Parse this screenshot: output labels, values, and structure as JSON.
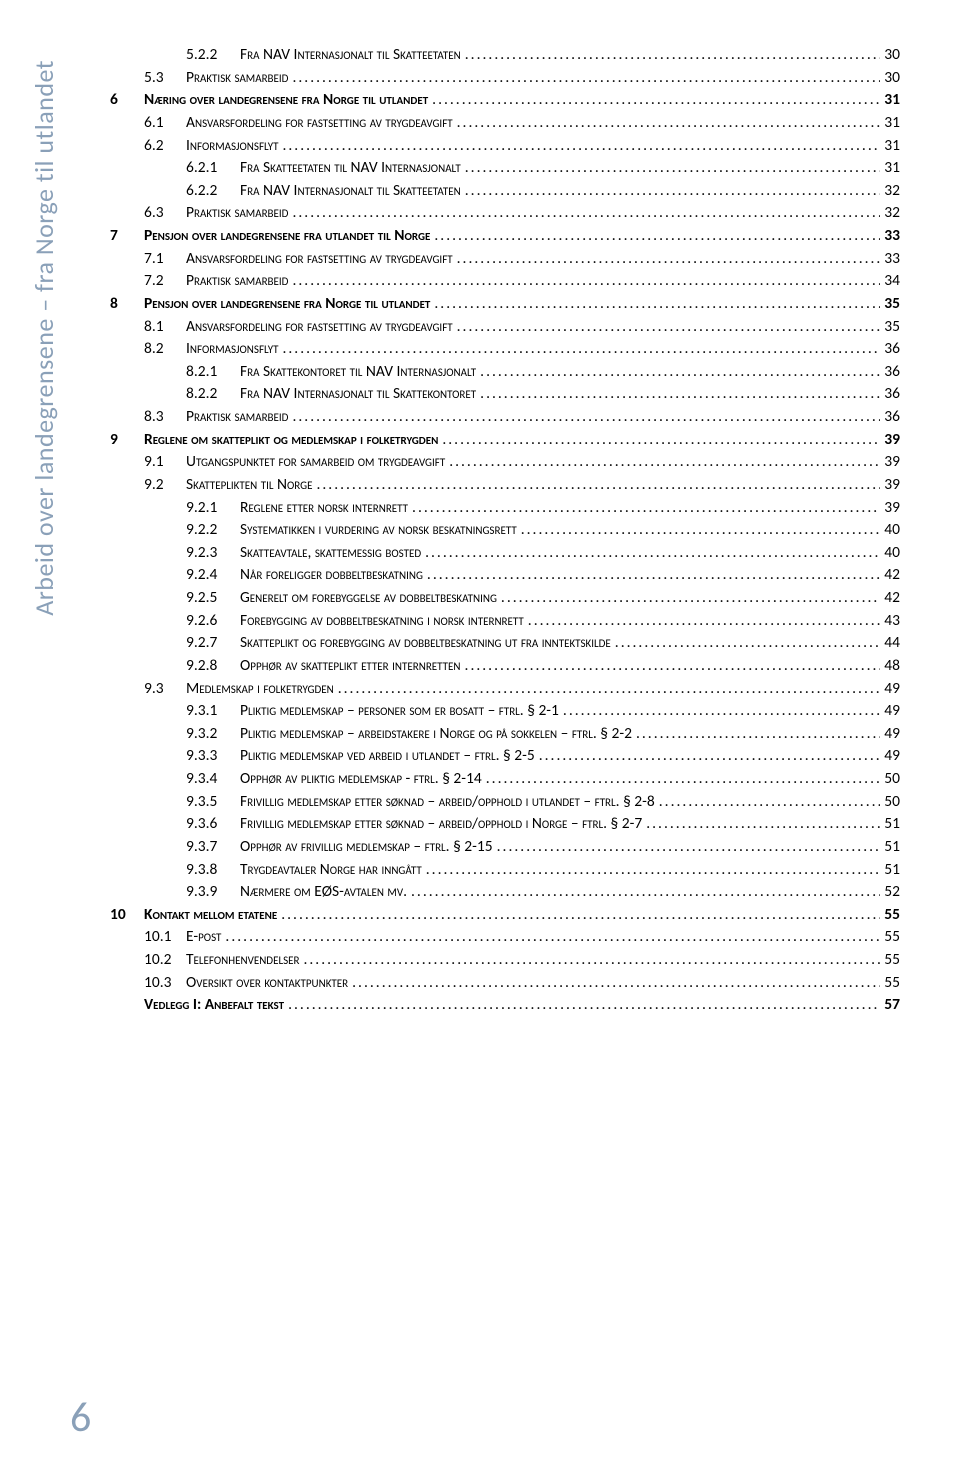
{
  "sidetext": "Arbeid over landegrensene – fra Norge til utlandet",
  "pagenum": "6",
  "leader": ".........................................................................................................................................................................................................................",
  "rows": [
    {
      "lvl": 3,
      "num": "5.2.2",
      "title": "Fra NAV Internasjonalt til Skatteetaten",
      "pg": "30"
    },
    {
      "lvl": 2,
      "num": "5.3",
      "title": "Praktisk samarbeid",
      "pg": "30"
    },
    {
      "lvl": 1,
      "num": "6",
      "title": "Næring over landegrensene fra Norge til utlandet",
      "pg": "31"
    },
    {
      "lvl": 2,
      "num": "6.1",
      "title": "Ansvarsfordeling for fastsetting av trygdeavgift",
      "pg": "31"
    },
    {
      "lvl": 2,
      "num": "6.2",
      "title": "Informasjonsflyt",
      "pg": "31"
    },
    {
      "lvl": 3,
      "num": "6.2.1",
      "title": "Fra Skatteetaten til NAV Internasjonalt",
      "pg": "31"
    },
    {
      "lvl": 3,
      "num": "6.2.2",
      "title": "Fra NAV Internasjonalt til Skatteetaten",
      "pg": "32"
    },
    {
      "lvl": 2,
      "num": "6.3",
      "title": "Praktisk samarbeid",
      "pg": "32"
    },
    {
      "lvl": 1,
      "num": "7",
      "title": "Pensjon over landegrensene fra utlandet til Norge",
      "pg": "33"
    },
    {
      "lvl": 2,
      "num": "7.1",
      "title": "Ansvarsfordeling for fastsetting av trygdeavgift",
      "pg": "33"
    },
    {
      "lvl": 2,
      "num": "7.2",
      "title": "Praktisk samarbeid",
      "pg": "34"
    },
    {
      "lvl": 1,
      "num": "8",
      "title": "Pensjon over landegrensene fra Norge til utlandet",
      "pg": "35"
    },
    {
      "lvl": 2,
      "num": "8.1",
      "title": "Ansvarsfordeling for fastsetting av trygdeavgift",
      "pg": "35"
    },
    {
      "lvl": 2,
      "num": "8.2",
      "title": "Informasjonsflyt",
      "pg": "36"
    },
    {
      "lvl": 3,
      "num": "8.2.1",
      "title": "Fra Skattekontoret til NAV Internasjonalt",
      "pg": "36"
    },
    {
      "lvl": 3,
      "num": "8.2.2",
      "title": "Fra NAV Internasjonalt til Skattekontoret",
      "pg": "36"
    },
    {
      "lvl": 2,
      "num": "8.3",
      "title": "Praktisk samarbeid",
      "pg": "36"
    },
    {
      "lvl": 1,
      "num": "9",
      "title": "Reglene om skatteplikt og medlemskap i folketrygden",
      "pg": "39"
    },
    {
      "lvl": 2,
      "num": "9.1",
      "title": "Utgangspunktet for samarbeid om trygdeavgift",
      "pg": "39"
    },
    {
      "lvl": 2,
      "num": "9.2",
      "title": "Skatteplikten til Norge",
      "pg": "39"
    },
    {
      "lvl": 3,
      "num": "9.2.1",
      "title": "Reglene etter norsk internrett",
      "pg": "39"
    },
    {
      "lvl": 3,
      "num": "9.2.2",
      "title": "Systematikken i vurdering av norsk beskatningsrett",
      "pg": "40"
    },
    {
      "lvl": 3,
      "num": "9.2.3",
      "title": "Skatteavtale, skattemessig bosted",
      "pg": "40"
    },
    {
      "lvl": 3,
      "num": "9.2.4",
      "title": "Når foreligger dobbeltbeskatning",
      "pg": "42"
    },
    {
      "lvl": 3,
      "num": "9.2.5",
      "title": "Generelt om forebyggelse av dobbeltbeskatning",
      "pg": "42"
    },
    {
      "lvl": 3,
      "num": "9.2.6",
      "title": "Forebygging av dobbeltbeskatning i norsk internrett",
      "pg": "43"
    },
    {
      "lvl": 3,
      "num": "9.2.7",
      "title": "Skatteplikt og forebygging av dobbeltbeskatning ut fra inntektskilde",
      "pg": "44"
    },
    {
      "lvl": 3,
      "num": "9.2.8",
      "title": "Opphør av skatteplikt etter internretten",
      "pg": "48"
    },
    {
      "lvl": 2,
      "num": "9.3",
      "title": "Medlemskap i folketrygden",
      "pg": "49"
    },
    {
      "lvl": 3,
      "num": "9.3.1",
      "title": "Pliktig medlemskap – personer som er bosatt – ftrl. § 2-1",
      "pg": "49"
    },
    {
      "lvl": 3,
      "num": "9.3.2",
      "title": "Pliktig medlemskap – arbeidstakere i Norge og på sokkelen – ftrl. § 2-2",
      "pg": "49"
    },
    {
      "lvl": 3,
      "num": "9.3.3",
      "title": "Pliktig medlemskap ved arbeid i utlandet – ftrl. § 2-5",
      "pg": "49"
    },
    {
      "lvl": 3,
      "num": "9.3.4",
      "title": "Opphør av pliktig medlemskap - ftrl. § 2-14",
      "pg": "50"
    },
    {
      "lvl": 3,
      "num": "9.3.5",
      "title": "Frivillig medlemskap etter søknad – arbeid/opphold i utlandet – ftrl. § 2-8",
      "pg": "50"
    },
    {
      "lvl": 3,
      "num": "9.3.6",
      "title": "Frivillig medlemskap etter søknad – arbeid/opphold i Norge – ftrl. § 2-7",
      "pg": "51"
    },
    {
      "lvl": 3,
      "num": "9.3.7",
      "title": "Opphør av frivillig medlemskap – ftrl. § 2-15",
      "pg": "51"
    },
    {
      "lvl": 3,
      "num": "9.3.8",
      "title": "Trygdeavtaler Norge har inngått",
      "pg": "51"
    },
    {
      "lvl": 3,
      "num": "9.3.9",
      "title": "Nærmere om EØS-avtalen mv.",
      "pg": "52"
    },
    {
      "lvl": 1,
      "num": "10",
      "title": "Kontakt mellom etatene",
      "pg": "55"
    },
    {
      "lvl": 2,
      "num": "10.1",
      "title": "E-post",
      "pg": "55"
    },
    {
      "lvl": 2,
      "num": "10.2",
      "title": "Telefonhenvendelser",
      "pg": "55"
    },
    {
      "lvl": 2,
      "num": "10.3",
      "title": "Oversikt over kontaktpunkter",
      "pg": "55"
    },
    {
      "lvl": 1,
      "num": "",
      "title": "Vedlegg I: Anbefalt tekst",
      "pg": "57"
    }
  ]
}
